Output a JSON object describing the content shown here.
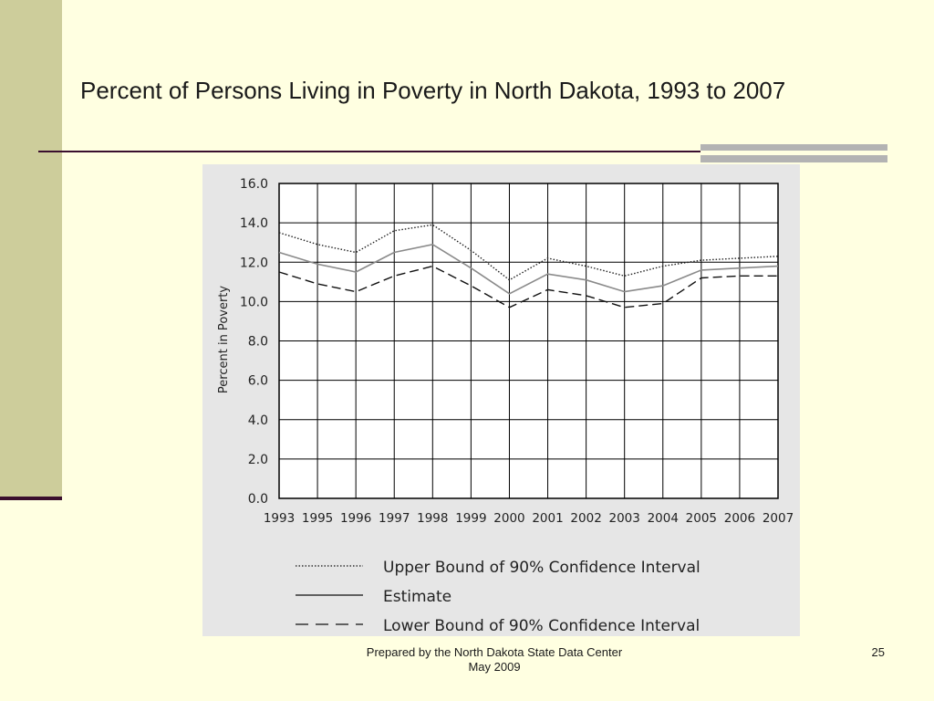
{
  "slide": {
    "title": "Percent of Persons Living in Poverty in North Dakota, 1993 to 2007",
    "footer_line1": "Prepared by the North Dakota State Data Center",
    "footer_line2": "May 2009",
    "page_number": "25"
  },
  "chart_data": {
    "type": "line",
    "ylabel": "Percent in Poverty",
    "ylim": [
      0,
      16
    ],
    "yticks": [
      "0.0",
      "2.0",
      "4.0",
      "6.0",
      "8.0",
      "10.0",
      "12.0",
      "14.0",
      "16.0"
    ],
    "x": [
      "1993",
      "1995",
      "1996",
      "1997",
      "1998",
      "1999",
      "2000",
      "2001",
      "2002",
      "2003",
      "2004",
      "2005",
      "2006",
      "2007"
    ],
    "grid": true,
    "legend_placement": "bottom",
    "series": [
      {
        "name": "Upper Bound of 90% Confidence Interval",
        "style": "dotted",
        "color": "#222222",
        "values": [
          13.5,
          12.9,
          12.5,
          13.6,
          13.9,
          12.6,
          11.1,
          12.2,
          11.8,
          11.3,
          11.8,
          12.1,
          12.2,
          12.3
        ]
      },
      {
        "name": "Estimate",
        "style": "solid",
        "color": "#8a8a8a",
        "values": [
          12.5,
          11.9,
          11.5,
          12.5,
          12.9,
          11.7,
          10.4,
          11.4,
          11.1,
          10.5,
          10.8,
          11.6,
          11.7,
          11.8
        ]
      },
      {
        "name": "Lower Bound of 90% Confidence Interval",
        "style": "dashed",
        "color": "#111111",
        "values": [
          11.5,
          10.9,
          10.5,
          11.3,
          11.8,
          10.8,
          9.7,
          10.6,
          10.3,
          9.7,
          9.9,
          11.2,
          11.3,
          11.3
        ]
      }
    ],
    "legend": [
      {
        "label": "Upper Bound of 90% Confidence Interval",
        "style": "dotted"
      },
      {
        "label": "Estimate",
        "style": "solid"
      },
      {
        "label": "Lower Bound of 90% Confidence Interval",
        "style": "dashed"
      }
    ]
  }
}
